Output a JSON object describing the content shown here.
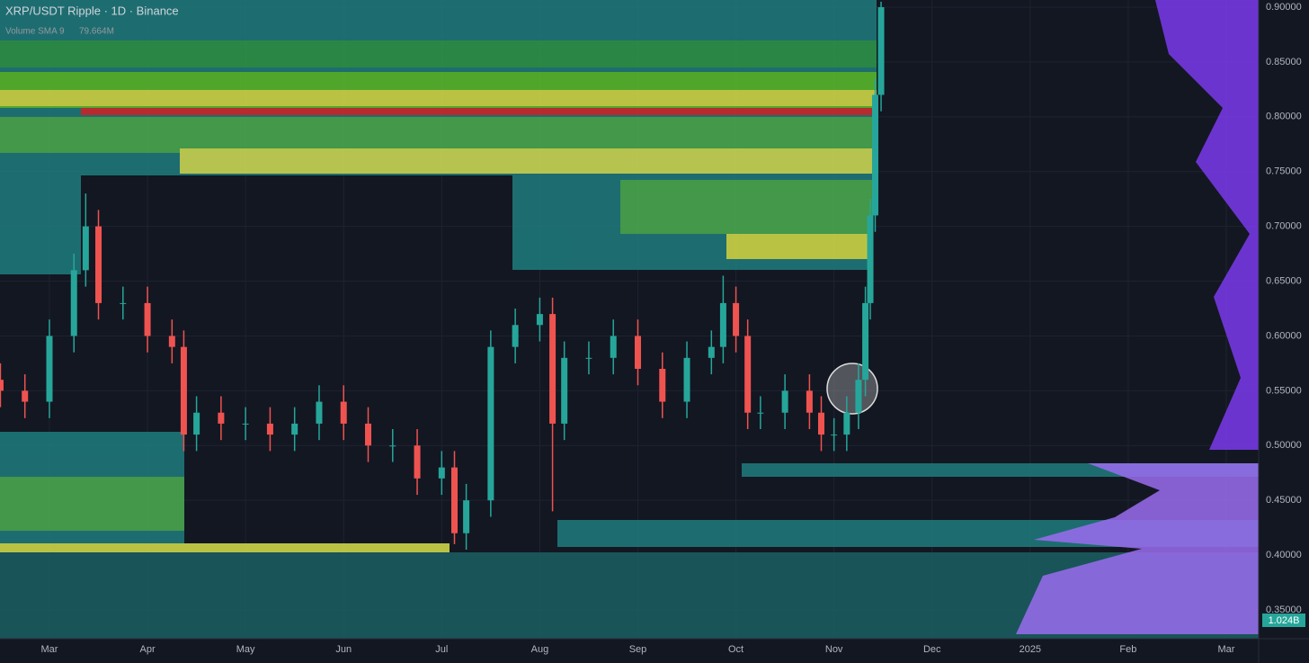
{
  "chart_data": {
    "type": "candlestick",
    "title": "XRP/USDT Ripple · 1D · Binance",
    "indicator": "Volume SMA 9",
    "indicator_value": "79.664M",
    "volume_label": "1.024B",
    "up_color": "#26a69a",
    "down_color": "#ef5350",
    "grid": true,
    "xlim": [
      -0.504,
      12.33
    ],
    "xticks": [
      {
        "value": 0,
        "label": "Mar"
      },
      {
        "value": 1,
        "label": "Apr"
      },
      {
        "value": 2,
        "label": "May"
      },
      {
        "value": 3,
        "label": "Jun"
      },
      {
        "value": 4,
        "label": "Jul"
      },
      {
        "value": 5,
        "label": "Aug"
      },
      {
        "value": 6,
        "label": "Sep"
      },
      {
        "value": 7,
        "label": "Oct"
      },
      {
        "value": 8,
        "label": "Nov"
      },
      {
        "value": 9,
        "label": "Dec"
      },
      {
        "value": 10,
        "label": "2025"
      },
      {
        "value": 11,
        "label": "Feb"
      },
      {
        "value": 12,
        "label": "Mar"
      }
    ],
    "ylim": [
      0.35,
      0.9
    ],
    "yticks": [
      {
        "value": 0.9,
        "label": "0.90000"
      },
      {
        "value": 0.85,
        "label": "0.85000"
      },
      {
        "value": 0.8,
        "label": "0.80000"
      },
      {
        "value": 0.75,
        "label": "0.75000"
      },
      {
        "value": 0.7,
        "label": "0.70000"
      },
      {
        "value": 0.65,
        "label": "0.65000"
      },
      {
        "value": 0.6,
        "label": "0.60000"
      },
      {
        "value": 0.55,
        "label": "0.55000"
      },
      {
        "value": 0.5,
        "label": "0.50000"
      },
      {
        "value": 0.45,
        "label": "0.45000"
      },
      {
        "value": 0.4,
        "label": "0.40000"
      },
      {
        "value": 0.35,
        "label": "0.35000"
      }
    ],
    "candles": {
      "x": [
        -0.5,
        -0.25,
        0,
        0.25,
        0.37,
        0.5,
        0.75,
        1.0,
        1.25,
        1.37,
        1.5,
        1.75,
        2.0,
        2.25,
        2.5,
        2.75,
        3.0,
        3.25,
        3.5,
        3.75,
        4.0,
        4.13,
        4.25,
        4.5,
        4.75,
        5.0,
        5.13,
        5.25,
        5.5,
        5.75,
        6.0,
        6.25,
        6.5,
        6.75,
        6.87,
        7.0,
        7.12,
        7.25,
        7.5,
        7.75,
        7.87,
        8.0,
        8.13,
        8.25,
        8.32,
        8.37,
        8.42,
        8.48
      ],
      "open": [
        0.56,
        0.55,
        0.54,
        0.6,
        0.66,
        0.7,
        0.63,
        0.63,
        0.6,
        0.59,
        0.51,
        0.53,
        0.52,
        0.52,
        0.51,
        0.52,
        0.54,
        0.52,
        0.5,
        0.5,
        0.47,
        0.48,
        0.42,
        0.45,
        0.59,
        0.61,
        0.62,
        0.52,
        0.58,
        0.58,
        0.6,
        0.57,
        0.54,
        0.58,
        0.59,
        0.63,
        0.6,
        0.53,
        0.53,
        0.55,
        0.53,
        0.51,
        0.51,
        0.53,
        0.56,
        0.63,
        0.71,
        0.82
      ],
      "high": [
        0.575,
        0.565,
        0.615,
        0.675,
        0.73,
        0.715,
        0.645,
        0.645,
        0.615,
        0.605,
        0.545,
        0.545,
        0.535,
        0.535,
        0.535,
        0.555,
        0.555,
        0.535,
        0.515,
        0.515,
        0.495,
        0.495,
        0.465,
        0.605,
        0.625,
        0.635,
        0.635,
        0.595,
        0.595,
        0.615,
        0.615,
        0.585,
        0.595,
        0.605,
        0.655,
        0.645,
        0.615,
        0.545,
        0.565,
        0.565,
        0.545,
        0.525,
        0.545,
        0.575,
        0.645,
        0.725,
        0.835,
        0.905
      ],
      "low": [
        0.535,
        0.525,
        0.525,
        0.585,
        0.645,
        0.615,
        0.615,
        0.585,
        0.575,
        0.495,
        0.495,
        0.505,
        0.505,
        0.495,
        0.495,
        0.505,
        0.505,
        0.485,
        0.485,
        0.455,
        0.455,
        0.41,
        0.405,
        0.435,
        0.575,
        0.595,
        0.44,
        0.505,
        0.565,
        0.565,
        0.555,
        0.525,
        0.525,
        0.565,
        0.575,
        0.585,
        0.515,
        0.515,
        0.515,
        0.515,
        0.495,
        0.495,
        0.495,
        0.515,
        0.545,
        0.615,
        0.695,
        0.805
      ],
      "close": [
        0.55,
        0.54,
        0.6,
        0.66,
        0.7,
        0.63,
        0.63,
        0.6,
        0.59,
        0.51,
        0.53,
        0.52,
        0.52,
        0.51,
        0.52,
        0.54,
        0.52,
        0.5,
        0.5,
        0.47,
        0.48,
        0.42,
        0.45,
        0.59,
        0.61,
        0.62,
        0.52,
        0.58,
        0.58,
        0.6,
        0.57,
        0.54,
        0.58,
        0.59,
        0.63,
        0.6,
        0.53,
        0.53,
        0.55,
        0.53,
        0.51,
        0.51,
        0.53,
        0.56,
        0.63,
        0.71,
        0.82,
        0.9
      ]
    }
  }
}
